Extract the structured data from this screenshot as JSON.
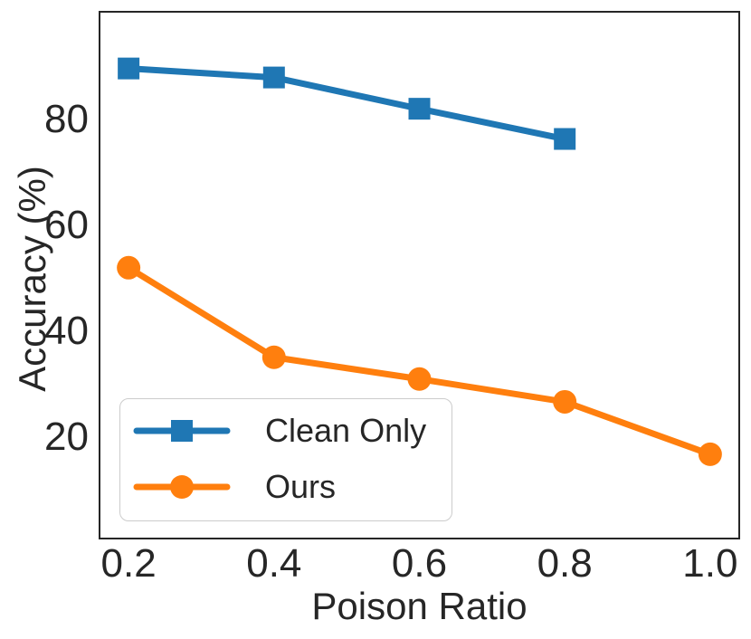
{
  "figure": {
    "background_color": "#ffffff",
    "text_color": "#262626",
    "spine_color": "#262626"
  },
  "chart_data": {
    "type": "line",
    "title": "",
    "xlabel": "Poison Ratio",
    "ylabel": "Accuracy (%)",
    "xlim": [
      0.16,
      1.04
    ],
    "ylim": [
      0.9,
      100.3
    ],
    "grid": false,
    "xticks": [
      0.2,
      0.4,
      0.6,
      0.8,
      1.0
    ],
    "xtick_labels": [
      "0.2",
      "0.4",
      "0.6",
      "0.8",
      "1.0"
    ],
    "yticks": [
      20,
      40,
      60,
      80
    ],
    "ytick_labels": [
      "20",
      "40",
      "60",
      "80"
    ],
    "legend": {
      "position": "lower-left",
      "border_color": "#cccccc"
    },
    "series": [
      {
        "name": "Clean Only",
        "color": "#1f77b4",
        "marker": "square",
        "x": [
          0.2,
          0.4,
          0.6,
          0.8
        ],
        "y": [
          89.6,
          87.9,
          82.0,
          76.3
        ]
      },
      {
        "name": "Ours",
        "color": "#ff7f0e",
        "marker": "circle",
        "x": [
          0.2,
          0.4,
          0.6,
          0.8,
          1.0
        ],
        "y": [
          52.0,
          35.1,
          31.0,
          26.7,
          16.8
        ]
      }
    ]
  }
}
